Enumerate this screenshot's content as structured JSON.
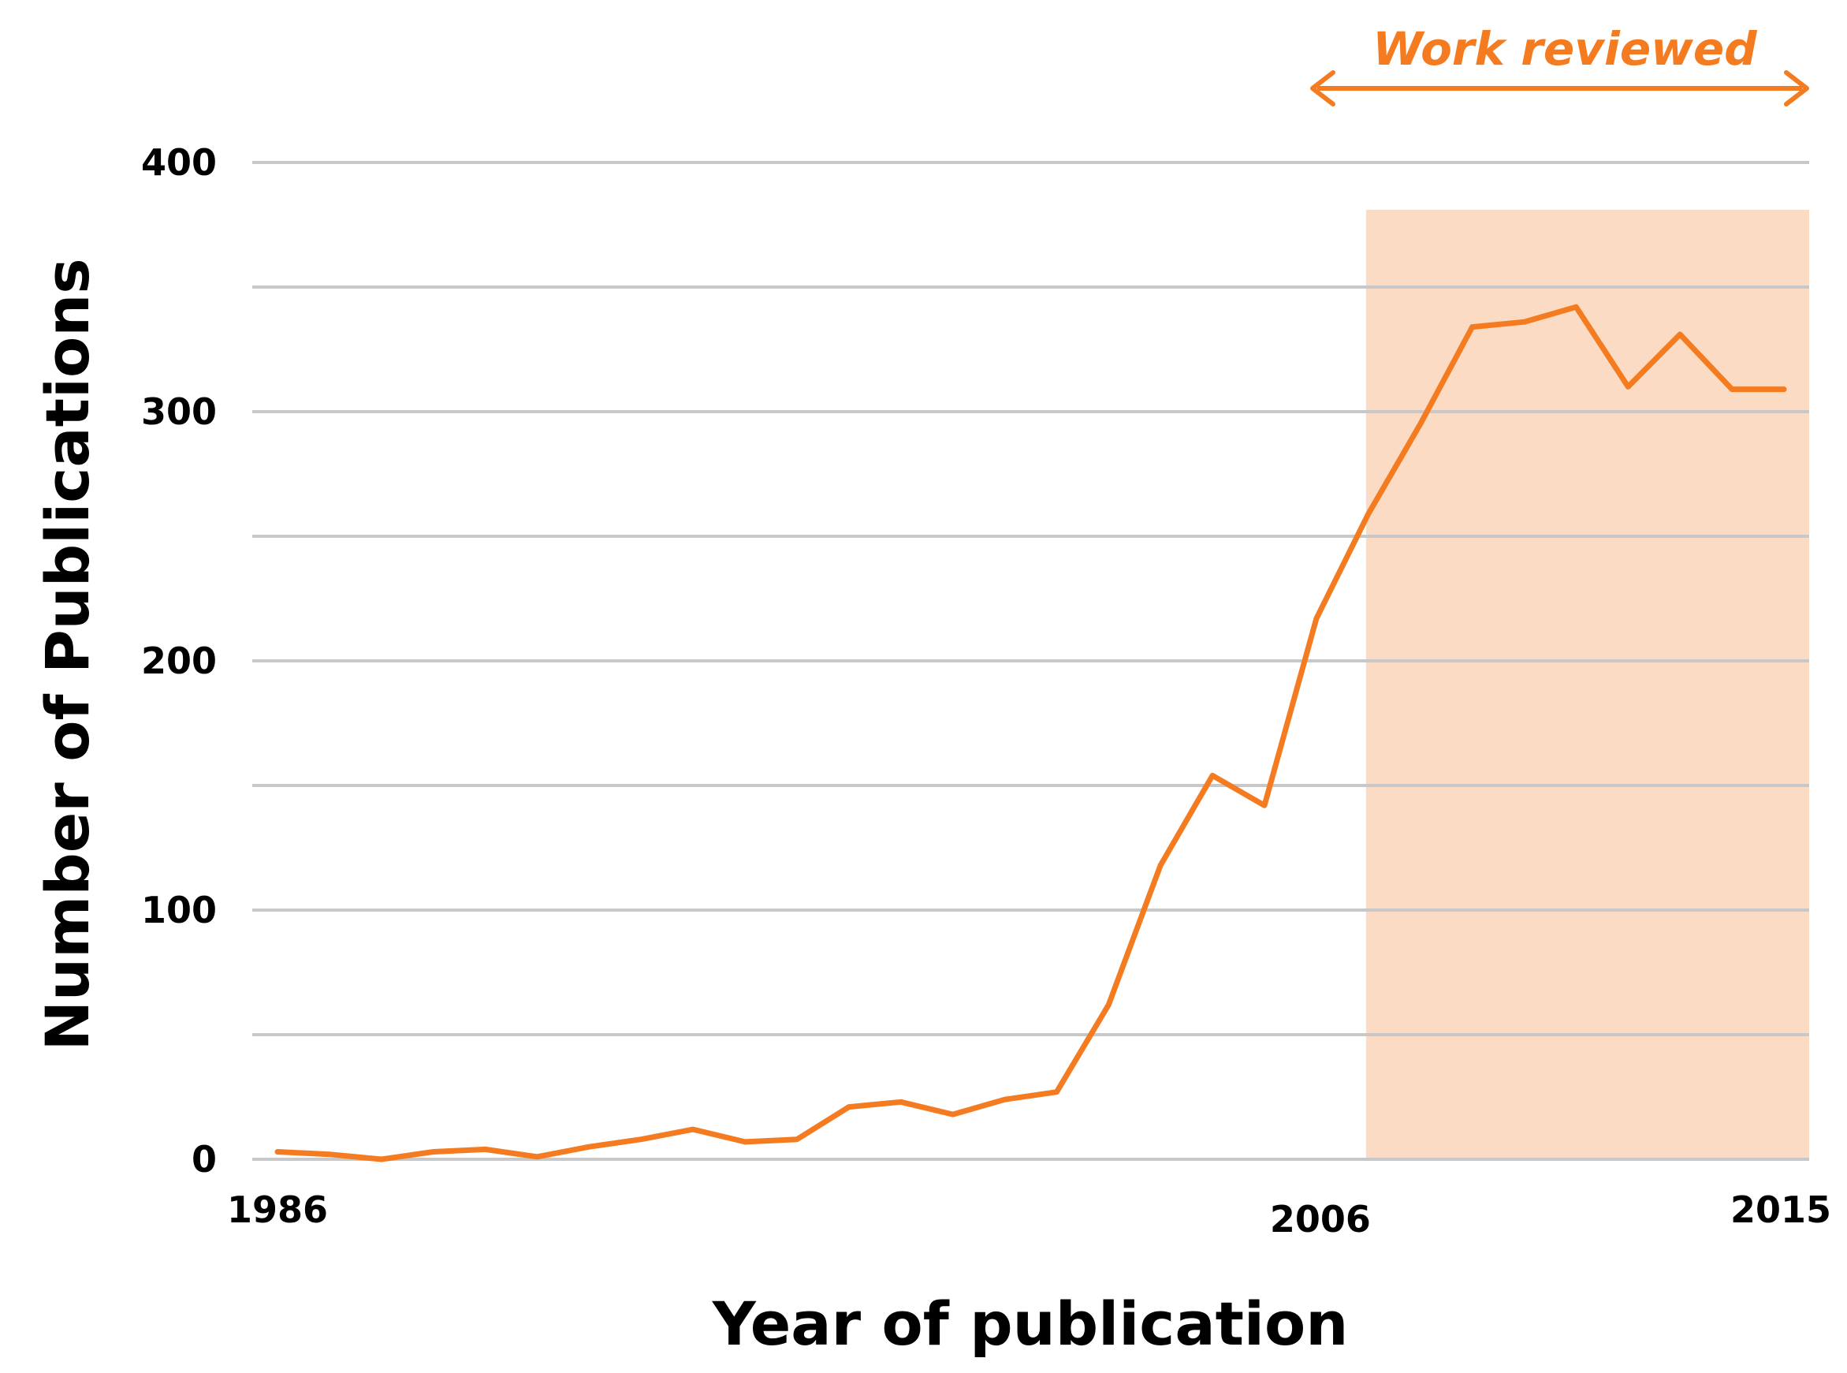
{
  "chart_data": {
    "type": "line",
    "title": "",
    "xlabel": "Year of publication",
    "ylabel": "Number of Publications",
    "xlim": [
      1986,
      2015
    ],
    "ylim": [
      0,
      400
    ],
    "y_gridlines": [
      0,
      50,
      100,
      150,
      200,
      250,
      300,
      350,
      400
    ],
    "y_tick_labels": [
      "0",
      "100",
      "200",
      "300",
      "400"
    ],
    "x_tick_labels": [
      "1986",
      "2006",
      "2015"
    ],
    "grid": "horizontal",
    "series": [
      {
        "color": "#F47B20",
        "x": [
          1986,
          1987,
          1988,
          1989,
          1990,
          1991,
          1992,
          1993,
          1994,
          1995,
          1996,
          1997,
          1998,
          1999,
          2000,
          2001,
          2002,
          2003,
          2004,
          2005,
          2006,
          2007,
          2008,
          2009,
          2010,
          2011,
          2012,
          2013,
          2014,
          2015
        ],
        "y": [
          3,
          2,
          0,
          3,
          4,
          1,
          5,
          8,
          12,
          7,
          8,
          21,
          23,
          18,
          24,
          27,
          62,
          118,
          154,
          142,
          217,
          259,
          295,
          334,
          336,
          342,
          310,
          331,
          309,
          309
        ]
      }
    ],
    "highlight": {
      "label": "Work reviewed",
      "x_start": 2006,
      "x_end": 2015,
      "color": "#FBDBC3",
      "arrow_color": "#F47B20"
    }
  }
}
